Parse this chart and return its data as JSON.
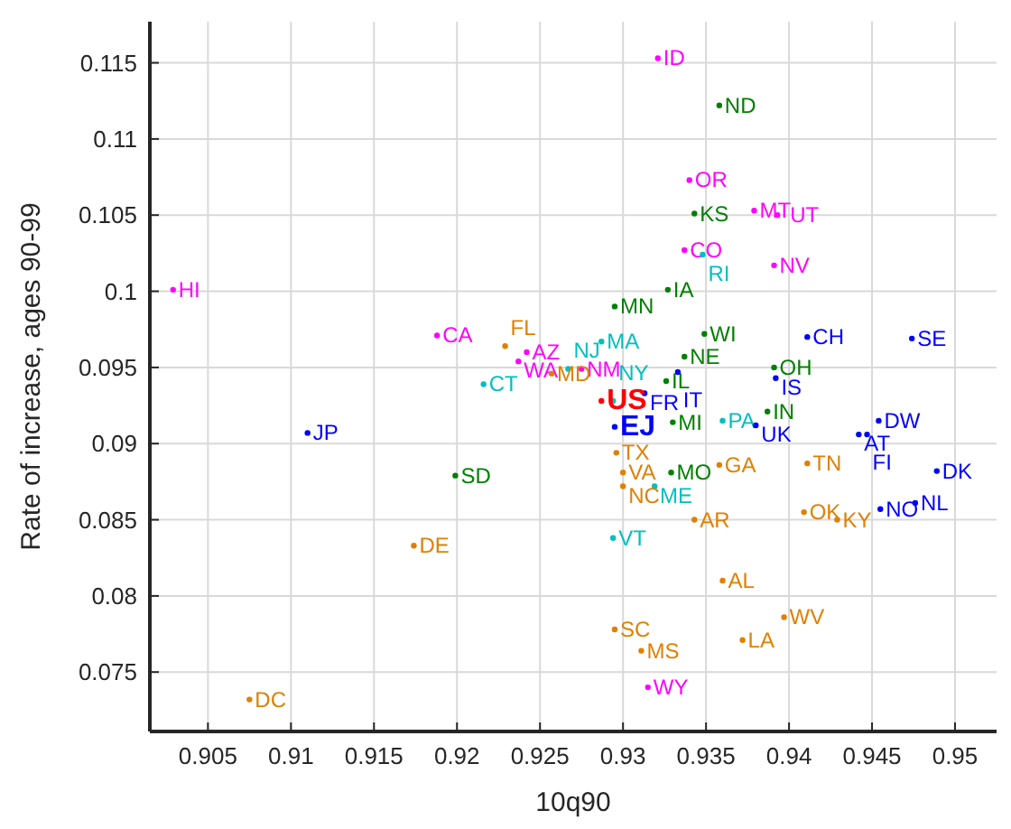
{
  "chart_data": {
    "type": "scatter",
    "xlabel": "10q90",
    "ylabel": "Rate of increase, ages 90-99",
    "marker": "circle",
    "grid": true,
    "xlim": [
      0.9015,
      0.9525
    ],
    "ylim": [
      0.0711,
      0.1177
    ],
    "xticks": [
      0.905,
      0.91,
      0.915,
      0.92,
      0.925,
      0.93,
      0.935,
      0.94,
      0.945,
      0.95
    ],
    "yticks": [
      0.075,
      0.08,
      0.085,
      0.09,
      0.095,
      0.1,
      0.105,
      0.11,
      0.115
    ],
    "series": [
      {
        "color": "#ff00ff",
        "x": [
          0.9029,
          0.9188,
          0.9242,
          0.9237,
          0.9275,
          0.9321,
          0.934,
          0.9379,
          0.9393,
          0.9337,
          0.9391,
          0.9315
        ],
        "values": [
          0.1001,
          0.0971,
          0.096,
          0.0954,
          0.0949,
          0.1153,
          0.1073,
          0.1053,
          0.105,
          0.1027,
          0.1017,
          0.074
        ],
        "value_labels": [
          "HI",
          "CA",
          "AZ",
          "WA",
          "NM",
          "ID",
          "OR",
          "MT",
          "UT",
          "CO",
          "NV",
          "WY"
        ]
      },
      {
        "color": "#008000",
        "x": [
          0.9358,
          0.9343,
          0.9295,
          0.9327,
          0.9349,
          0.9337,
          0.9326,
          0.9391,
          0.9387,
          0.933,
          0.9329,
          0.9199
        ],
        "values": [
          0.1122,
          0.1051,
          0.099,
          0.1001,
          0.0972,
          0.0957,
          0.0941,
          0.095,
          0.0921,
          0.0914,
          0.0881,
          0.0879
        ],
        "value_labels": [
          "ND",
          "KS",
          "MN",
          "IA",
          "WI",
          "NE",
          "IL",
          "OH",
          "IN",
          "MI",
          "MO",
          "SD"
        ]
      },
      {
        "color": "#00bfbf",
        "x": [
          0.9216,
          0.9287,
          0.9348,
          0.9267,
          0.9294,
          0.936,
          0.9319,
          0.9294
        ],
        "values": [
          0.0939,
          0.0967,
          0.1024,
          0.0949,
          0.0928,
          0.0915,
          0.0872,
          0.0838
        ],
        "value_labels": [
          "CT",
          "MA",
          "RI",
          "NJ",
          "NY",
          "PA",
          "ME",
          "VT"
        ]
      },
      {
        "color": "#e08000",
        "x": [
          0.9229,
          0.9257,
          0.9296,
          0.93,
          0.93,
          0.9358,
          0.9411,
          0.9343,
          0.9409,
          0.9429,
          0.936,
          0.9397,
          0.9295,
          0.9372,
          0.9311,
          0.9174,
          0.9075
        ],
        "values": [
          0.0964,
          0.0946,
          0.0894,
          0.0881,
          0.0872,
          0.0886,
          0.0887,
          0.085,
          0.0855,
          0.085,
          0.081,
          0.0786,
          0.0778,
          0.0771,
          0.0764,
          0.0833,
          0.0732
        ],
        "value_labels": [
          "FL",
          "MD",
          "TX",
          "VA",
          "NC",
          "GA",
          "TN",
          "AR",
          "OK",
          "KY",
          "AL",
          "WV",
          "SC",
          "LA",
          "MS",
          "DE",
          "DC"
        ]
      },
      {
        "color": "#0000ff",
        "x": [
          0.911,
          0.9411,
          0.9474,
          0.9333,
          0.9392,
          0.9313,
          0.938,
          0.9454,
          0.9442,
          0.9447,
          0.9489,
          0.9455,
          0.9476
        ],
        "values": [
          0.0907,
          0.097,
          0.0969,
          0.0947,
          0.0943,
          0.0933,
          0.0912,
          0.0915,
          0.0906,
          0.0906,
          0.0882,
          0.0857,
          0.0861
        ],
        "value_labels": [
          "JP",
          "CH",
          "SE",
          "IT",
          "IS",
          "FR",
          "UK",
          "DW",
          "AT",
          "FI",
          "DK",
          "NO",
          "NL"
        ]
      },
      {
        "color": "#ff0000",
        "x": [
          0.9287
        ],
        "values": [
          0.0928
        ],
        "value_labels": [
          "US"
        ]
      },
      {
        "color": "#0000ff",
        "x": [
          0.9295
        ],
        "values": [
          0.0911
        ],
        "value_labels": [
          "EJ"
        ]
      }
    ]
  }
}
